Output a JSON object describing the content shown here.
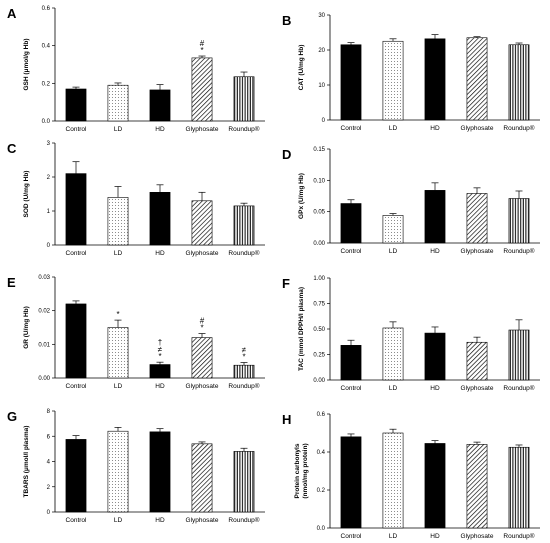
{
  "colors": {
    "bar_stroke": "#000000",
    "control_fill": "#000000",
    "hd_fill": "#111111",
    "ld_fill": "#ffffff"
  },
  "chart_data": [
    {
      "panel": "A",
      "type": "bar",
      "categories": [
        "Control",
        "LD",
        "HD",
        "Glyphosate",
        "Roundup®"
      ],
      "patterns": [
        "solid",
        "dots",
        "solid",
        "diagonal",
        "vertical"
      ],
      "values": [
        0.17,
        0.19,
        0.165,
        0.335,
        0.235
      ],
      "errors": [
        0.01,
        0.012,
        0.028,
        0.01,
        0.025
      ],
      "annotations": [
        "",
        "",
        "",
        "#\n*",
        ""
      ],
      "ylabel": "GSH (μmol/g Hb)",
      "ylim": [
        0.0,
        0.6
      ],
      "yticks": [
        "0.0",
        "0.2",
        "0.4",
        "0.6"
      ]
    },
    {
      "panel": "B",
      "type": "bar",
      "categories": [
        "Control",
        "LD",
        "HD",
        "Glyphosate",
        "Roundup®"
      ],
      "patterns": [
        "solid",
        "dots",
        "solid",
        "diagonal",
        "vertical"
      ],
      "values": [
        21.5,
        22.5,
        23.2,
        23.5,
        21.5
      ],
      "errors": [
        0.6,
        0.7,
        1.2,
        0.3,
        0.5
      ],
      "annotations": [
        "",
        "",
        "",
        "",
        ""
      ],
      "ylabel": "CAT (U/mg Hb)",
      "ylim": [
        0,
        30
      ],
      "yticks": [
        "0",
        "10",
        "20",
        "30"
      ]
    },
    {
      "panel": "C",
      "type": "bar",
      "categories": [
        "Control",
        "LD",
        "HD",
        "Glyphosate",
        "Roundup®"
      ],
      "patterns": [
        "solid",
        "dots",
        "solid",
        "diagonal",
        "vertical"
      ],
      "values": [
        2.1,
        1.4,
        1.55,
        1.3,
        1.15
      ],
      "errors": [
        0.35,
        0.32,
        0.22,
        0.25,
        0.08
      ],
      "annotations": [
        "",
        "",
        "",
        "",
        ""
      ],
      "ylabel": "SOD (U/mg Hb)",
      "ylim": [
        0,
        3
      ],
      "yticks": [
        "0",
        "1",
        "2",
        "3"
      ]
    },
    {
      "panel": "D",
      "type": "bar",
      "categories": [
        "Control",
        "LD",
        "HD",
        "Glyphosate",
        "Roundup®"
      ],
      "patterns": [
        "solid",
        "dots",
        "solid",
        "diagonal",
        "vertical"
      ],
      "values": [
        0.063,
        0.044,
        0.084,
        0.079,
        0.071
      ],
      "errors": [
        0.006,
        0.003,
        0.012,
        0.009,
        0.012
      ],
      "annotations": [
        "",
        "",
        "",
        "",
        ""
      ],
      "ylabel": "GPx (U/mg Hb)",
      "ylim": [
        0.0,
        0.15
      ],
      "yticks": [
        "0.00",
        "0.05",
        "0.10",
        "0.15"
      ]
    },
    {
      "panel": "E",
      "type": "bar",
      "categories": [
        "Control",
        "LD",
        "HD",
        "Glyphosate",
        "Roundup®"
      ],
      "patterns": [
        "solid",
        "dots",
        "solid",
        "diagonal",
        "vertical"
      ],
      "values": [
        0.022,
        0.015,
        0.004,
        0.012,
        0.0038
      ],
      "errors": [
        0.0009,
        0.0022,
        0.0007,
        0.0012,
        0.0008
      ],
      "annotations": [
        "",
        "*",
        "†\n≠\n*",
        "#\n*",
        "≠\n*"
      ],
      "ylabel": "GR (U/mg Hb)",
      "ylim": [
        0.0,
        0.03
      ],
      "yticks": [
        "0.00",
        "0.01",
        "0.02",
        "0.03"
      ]
    },
    {
      "panel": "F",
      "type": "bar",
      "categories": [
        "Control",
        "LD",
        "HD",
        "Glyphosate",
        "Roundup®"
      ],
      "patterns": [
        "solid",
        "dots",
        "solid",
        "diagonal",
        "vertical"
      ],
      "values": [
        0.34,
        0.51,
        0.46,
        0.37,
        0.49
      ],
      "errors": [
        0.05,
        0.06,
        0.06,
        0.05,
        0.1
      ],
      "annotations": [
        "",
        "",
        "",
        "",
        ""
      ],
      "ylabel": "TAC (mmol DPPH/l plasma)",
      "ylim": [
        0.0,
        1.0
      ],
      "yticks": [
        "0.00",
        "0.25",
        "0.50",
        "0.75",
        "1.00"
      ]
    },
    {
      "panel": "G",
      "type": "bar",
      "categories": [
        "Control",
        "LD",
        "HD",
        "Glyphosate",
        "Roundup®"
      ],
      "patterns": [
        "solid",
        "dots",
        "solid",
        "diagonal",
        "vertical"
      ],
      "values": [
        5.75,
        6.4,
        6.35,
        5.4,
        4.8
      ],
      "errors": [
        0.3,
        0.3,
        0.25,
        0.15,
        0.25
      ],
      "annotations": [
        "",
        "",
        "",
        "",
        ""
      ],
      "ylabel": "TBARS (μmol/l plasma)",
      "ylim": [
        0,
        8
      ],
      "yticks": [
        "0",
        "2",
        "4",
        "6",
        "8"
      ]
    },
    {
      "panel": "H",
      "type": "bar",
      "categories": [
        "Control",
        "LD",
        "HD",
        "Glyphosate",
        "Roundup®"
      ],
      "patterns": [
        "solid",
        "dots",
        "solid",
        "diagonal",
        "vertical"
      ],
      "values": [
        0.48,
        0.5,
        0.445,
        0.44,
        0.425
      ],
      "errors": [
        0.015,
        0.02,
        0.015,
        0.012,
        0.012
      ],
      "annotations": [
        "",
        "",
        "",
        "",
        ""
      ],
      "ylabel": "Protein carbonyls (nmol/mg protein)",
      "ylim": [
        0.0,
        0.6
      ],
      "yticks": [
        "0.0",
        "0.2",
        "0.4",
        "0.6"
      ]
    }
  ]
}
